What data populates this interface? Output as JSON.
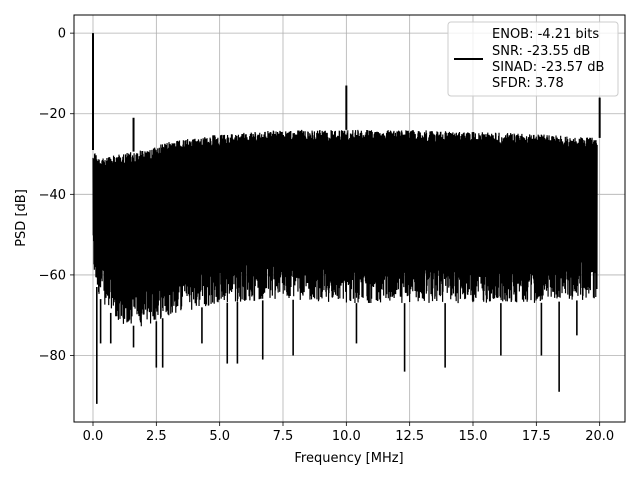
{
  "chart_data": {
    "type": "line",
    "xlabel": "Frequency [MHz]",
    "ylabel": "PSD [dB]",
    "xlim": [
      -0.75,
      21.0
    ],
    "ylim": [
      -96.5,
      4.5
    ],
    "xticks": [
      0.0,
      2.5,
      5.0,
      7.5,
      10.0,
      12.5,
      15.0,
      17.5,
      20.0
    ],
    "xtick_labels": [
      "0.0",
      "2.5",
      "5.0",
      "7.5",
      "10.0",
      "12.5",
      "15.0",
      "17.5",
      "20.0"
    ],
    "yticks": [
      0,
      -20,
      -40,
      -60,
      -80
    ],
    "ytick_labels": [
      "0",
      "−20",
      "−40",
      "−60",
      "−80"
    ],
    "grid": true,
    "line_color": "#000000",
    "legend_position": "top-right",
    "legend": {
      "lines": [
        "ENOB: -4.21 bits",
        "SNR: -23.55 dB",
        "SINAD: -23.57 dB",
        "SFDR: 3.78"
      ]
    },
    "series": [
      {
        "upper_envelope": {
          "x": [
            0.0,
            0.3,
            1.0,
            2.0,
            3.0,
            5.0,
            7.5,
            10.0,
            12.5,
            15.0,
            17.5,
            19.9
          ],
          "y": [
            -29,
            -31,
            -30,
            -29,
            -27,
            -25,
            -24,
            -24,
            -24,
            -24.5,
            -25,
            -26
          ]
        },
        "lower_envelope": {
          "x": [
            0.0,
            0.3,
            1.0,
            2.0,
            3.0,
            5.0,
            7.5,
            10.0,
            12.5,
            15.0,
            17.5,
            19.9
          ],
          "y": [
            -60,
            -66,
            -72,
            -73,
            -70,
            -67,
            -66,
            -67,
            -67,
            -67,
            -67,
            -66
          ]
        },
        "spikes": [
          {
            "x": 0.0,
            "y": 0
          },
          {
            "x": 1.6,
            "y": -21
          },
          {
            "x": 10.0,
            "y": -13
          },
          {
            "x": 20.0,
            "y": -16
          }
        ],
        "dips": [
          {
            "x": 0.15,
            "y": -92
          },
          {
            "x": 0.3,
            "y": -77
          },
          {
            "x": 0.7,
            "y": -77
          },
          {
            "x": 1.6,
            "y": -78
          },
          {
            "x": 2.5,
            "y": -83
          },
          {
            "x": 2.75,
            "y": -83
          },
          {
            "x": 4.3,
            "y": -77
          },
          {
            "x": 5.3,
            "y": -82
          },
          {
            "x": 5.7,
            "y": -82
          },
          {
            "x": 6.7,
            "y": -81
          },
          {
            "x": 7.9,
            "y": -80
          },
          {
            "x": 10.4,
            "y": -77
          },
          {
            "x": 12.3,
            "y": -84
          },
          {
            "x": 13.9,
            "y": -83
          },
          {
            "x": 16.1,
            "y": -80
          },
          {
            "x": 17.7,
            "y": -80
          },
          {
            "x": 18.4,
            "y": -89
          },
          {
            "x": 19.1,
            "y": -75
          }
        ]
      }
    ]
  }
}
